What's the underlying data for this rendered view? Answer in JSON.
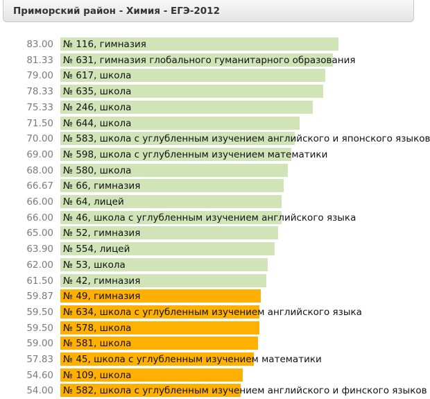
{
  "header": {
    "title": "Приморский район - Химия - ЕГЭ-2012"
  },
  "colors": {
    "above": "#d1e4b8",
    "below": "#ffb000"
  },
  "chart_data": {
    "type": "bar",
    "orientation": "horizontal",
    "xlim": [
      0,
      100
    ],
    "grid": false,
    "categories": [
      "№ 116, гимназия",
      "№ 631, гимназия глобального гуманитарного образования",
      "№ 617, школа",
      "№ 635, школа",
      "№ 246, школа",
      "№ 644, школа",
      "№ 583, школа с углубленным изучением английского и японского языков",
      "№ 598, школа с углубленным изучением математики",
      "№ 580, школа",
      "№ 66, гимназия",
      "№ 64, лицей",
      "№ 46, школа с углубленным изучением английского языка",
      "№ 52, гимназия",
      "№ 554, лицей",
      "№ 53, школа",
      "№ 42, гимназия",
      "№ 49, гимназия",
      "№ 634, школа с углубленным изучением английского языка",
      "№ 578, школа",
      "№ 581, школа",
      "№ 45, школа с углубленным изучением математики",
      "№ 109, школа",
      "№ 582, школа с углубленным изучением английского и финского языков"
    ],
    "value_labels": [
      "83.00",
      "81.33",
      "79.00",
      "78.33",
      "75.33",
      "71.50",
      "70.00",
      "69.00",
      "68.00",
      "66.67",
      "66.00",
      "66.00",
      "65.00",
      "63.90",
      "62.00",
      "61.50",
      "59.87",
      "59.50",
      "59.50",
      "59.00",
      "57.83",
      "54.60",
      "54.00"
    ],
    "values": [
      83.0,
      81.33,
      79.0,
      78.33,
      75.33,
      71.5,
      70.0,
      69.0,
      68.0,
      66.67,
      66.0,
      66.0,
      65.0,
      63.9,
      62.0,
      61.5,
      59.87,
      59.5,
      59.5,
      59.0,
      57.83,
      54.6,
      54.0
    ],
    "groups": [
      "above",
      "above",
      "above",
      "above",
      "above",
      "above",
      "above",
      "above",
      "above",
      "above",
      "above",
      "above",
      "above",
      "above",
      "above",
      "above",
      "below",
      "below",
      "below",
      "below",
      "below",
      "below",
      "below"
    ]
  }
}
